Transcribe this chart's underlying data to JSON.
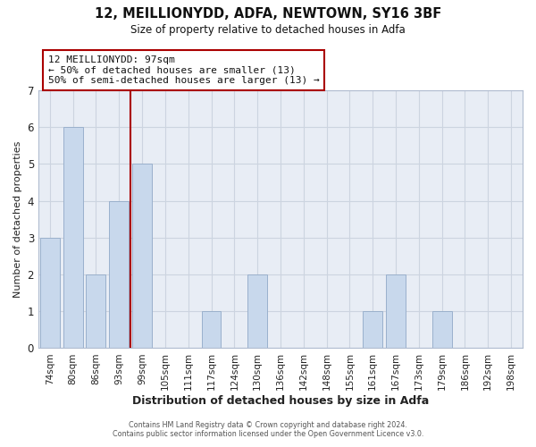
{
  "title": "12, MEILLIONYDD, ADFA, NEWTOWN, SY16 3BF",
  "subtitle": "Size of property relative to detached houses in Adfa",
  "xlabel": "Distribution of detached houses by size in Adfa",
  "ylabel": "Number of detached properties",
  "footer_line1": "Contains HM Land Registry data © Crown copyright and database right 2024.",
  "footer_line2": "Contains public sector information licensed under the Open Government Licence v3.0.",
  "categories": [
    "74sqm",
    "80sqm",
    "86sqm",
    "93sqm",
    "99sqm",
    "105sqm",
    "111sqm",
    "117sqm",
    "124sqm",
    "130sqm",
    "136sqm",
    "142sqm",
    "148sqm",
    "155sqm",
    "161sqm",
    "167sqm",
    "173sqm",
    "179sqm",
    "186sqm",
    "192sqm",
    "198sqm"
  ],
  "values": [
    3,
    6,
    2,
    4,
    5,
    0,
    0,
    1,
    0,
    2,
    0,
    0,
    0,
    0,
    1,
    2,
    0,
    1,
    0,
    0,
    0
  ],
  "bar_color": "#c8d8ec",
  "bar_edge_color": "#9ab0cc",
  "grid_color": "#ccd4e0",
  "background_color": "#ffffff",
  "plot_bg_color": "#e8edf5",
  "vline_color": "#aa0000",
  "vline_x_index": 4,
  "annotation_title": "12 MEILLIONYDD: 97sqm",
  "annotation_line1": "← 50% of detached houses are smaller (13)",
  "annotation_line2": "50% of semi-detached houses are larger (13) →",
  "annotation_box_color": "#ffffff",
  "annotation_border_color": "#aa0000",
  "ylim": [
    0,
    7
  ],
  "yticks": [
    0,
    1,
    2,
    3,
    4,
    5,
    6,
    7
  ]
}
